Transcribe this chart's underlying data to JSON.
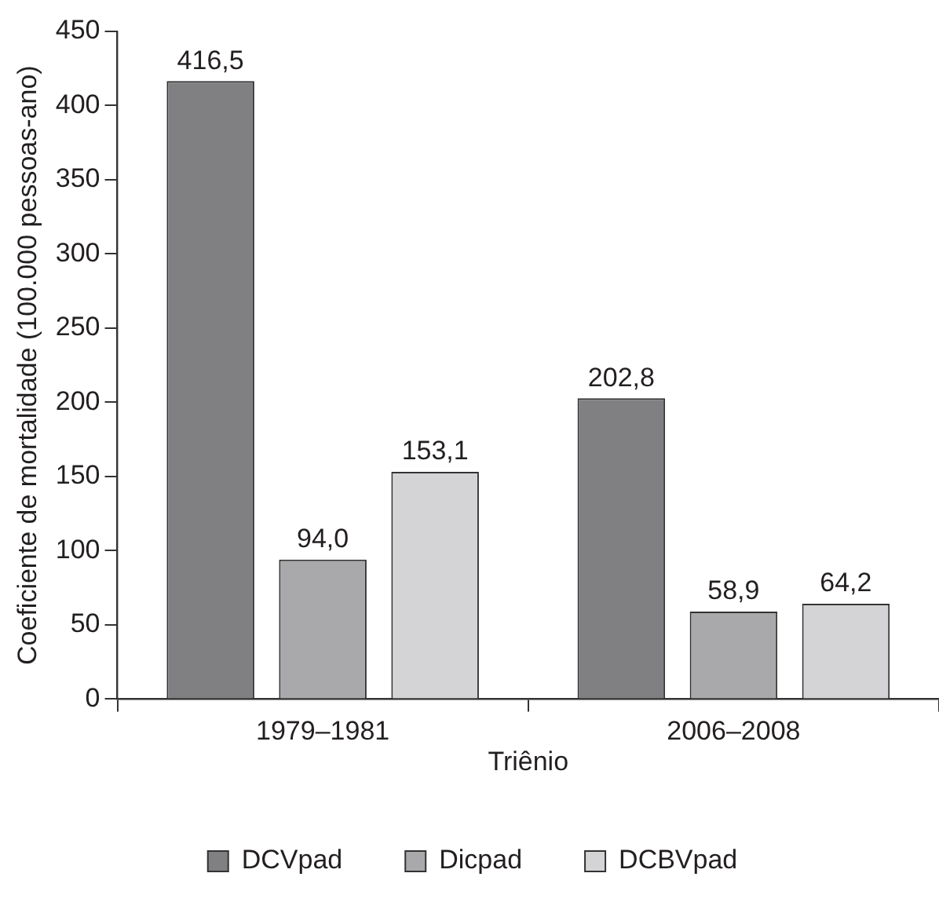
{
  "chart_data": {
    "type": "bar",
    "xlabel": "Triênio",
    "ylabel": "Coeficiente de mortalidade (100.000 pessoas-ano)",
    "categories": [
      "1979–1981",
      "2006–2008"
    ],
    "series": [
      {
        "name": "DCVpad",
        "color": "#808083",
        "values": [
          416.5,
          202.8
        ],
        "value_labels": [
          "416,5",
          "202,8"
        ]
      },
      {
        "name": "Dicpad",
        "color": "#a9a9ac",
        "values": [
          94.0,
          58.9
        ],
        "value_labels": [
          "94,0",
          "58,9"
        ]
      },
      {
        "name": "DCBVpad",
        "color": "#d4d4d6",
        "values": [
          153.1,
          64.2
        ],
        "value_labels": [
          "153,1",
          "64,2"
        ]
      }
    ],
    "ylim": [
      0,
      450
    ],
    "yticks": [
      0,
      50,
      100,
      150,
      200,
      250,
      300,
      350,
      400,
      450
    ],
    "grid": false,
    "legend": "bottom"
  }
}
